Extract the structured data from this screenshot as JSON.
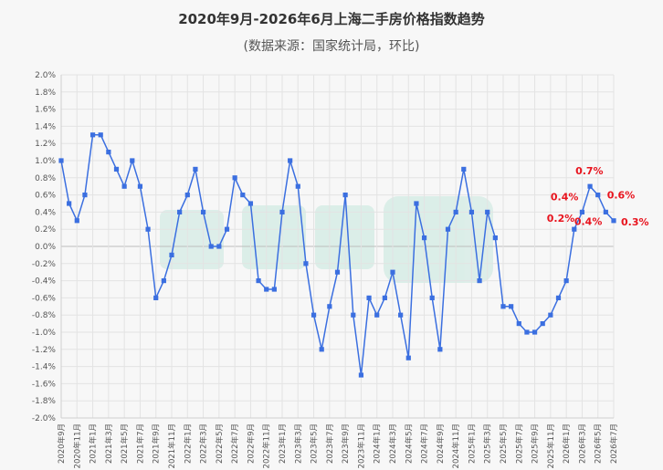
{
  "chart_data": {
    "type": "line",
    "title": "2020年9月-2026年6月上海二手房价格指数趋势",
    "subtitle": "(数据来源：国家统计局，环比)",
    "xlabel": "",
    "ylabel": "",
    "ylim": [
      -2.0,
      2.0
    ],
    "yticks": [
      "2.0%",
      "1.8%",
      "1.6%",
      "1.4%",
      "1.2%",
      "1.0%",
      "0.8%",
      "0.6%",
      "0.4%",
      "0.2%",
      "0.0%",
      "-0.2%",
      "-0.4%",
      "-0.6%",
      "-0.8%",
      "-1.0%",
      "-1.2%",
      "-1.4%",
      "-1.6%",
      "-1.8%",
      "-2.0%"
    ],
    "x_tick_labels": [
      "2020年9月",
      "2020年11月",
      "2021年1月",
      "2021年3月",
      "2021年5月",
      "2021年7月",
      "2021年9月",
      "2021年11月",
      "2022年1月",
      "2022年3月",
      "2022年5月",
      "2022年7月",
      "2022年9月",
      "2022年11月",
      "2023年1月",
      "2023年3月",
      "2023年5月",
      "2023年7月",
      "2023年9月",
      "2023年11月",
      "2024年1月",
      "2024年3月",
      "2024年5月",
      "2024年7月",
      "2024年9月",
      "2024年11月",
      "2025年1月",
      "2025年3月",
      "2025年5月",
      "2025年7月",
      "2025年9月",
      "2025年11月",
      "2026年1月",
      "2026年3月",
      "2026年5月",
      "2026年7月"
    ],
    "grid": true,
    "series": [
      {
        "name": "",
        "color": "#3b6fe0",
        "values": [
          1.0,
          0.5,
          0.3,
          0.6,
          1.3,
          1.3,
          1.1,
          0.9,
          0.7,
          1.0,
          0.7,
          0.2,
          -0.6,
          -0.4,
          -0.1,
          0.4,
          0.6,
          0.9,
          0.4,
          0.0,
          0.0,
          0.2,
          0.8,
          0.6,
          0.5,
          -0.4,
          -0.5,
          -0.5,
          0.4,
          1.0,
          0.7,
          -0.2,
          -0.8,
          -1.2,
          -0.7,
          -0.3,
          0.6,
          -0.8,
          -1.5,
          -0.6,
          -0.8,
          -0.6,
          -0.3,
          -0.8,
          -1.3,
          0.5,
          0.1,
          -0.6,
          -1.2,
          0.2,
          0.4,
          0.9,
          0.4,
          -0.4,
          0.4,
          0.1,
          -0.7,
          -0.7,
          -0.9,
          -1.0,
          -1.0,
          -0.9,
          -0.8,
          -0.6,
          -0.4,
          0.2,
          0.4,
          0.7,
          0.6,
          0.4,
          0.3
        ]
      }
    ],
    "annotations": [
      {
        "text": "0.2%",
        "index": 65
      },
      {
        "text": "0.4%",
        "index": 66
      },
      {
        "text": "0.7%",
        "index": 67
      },
      {
        "text": "0.6%",
        "index": 68
      },
      {
        "text": "0.4%",
        "index": 69
      },
      {
        "text": "0.3%",
        "index": 70
      }
    ]
  }
}
